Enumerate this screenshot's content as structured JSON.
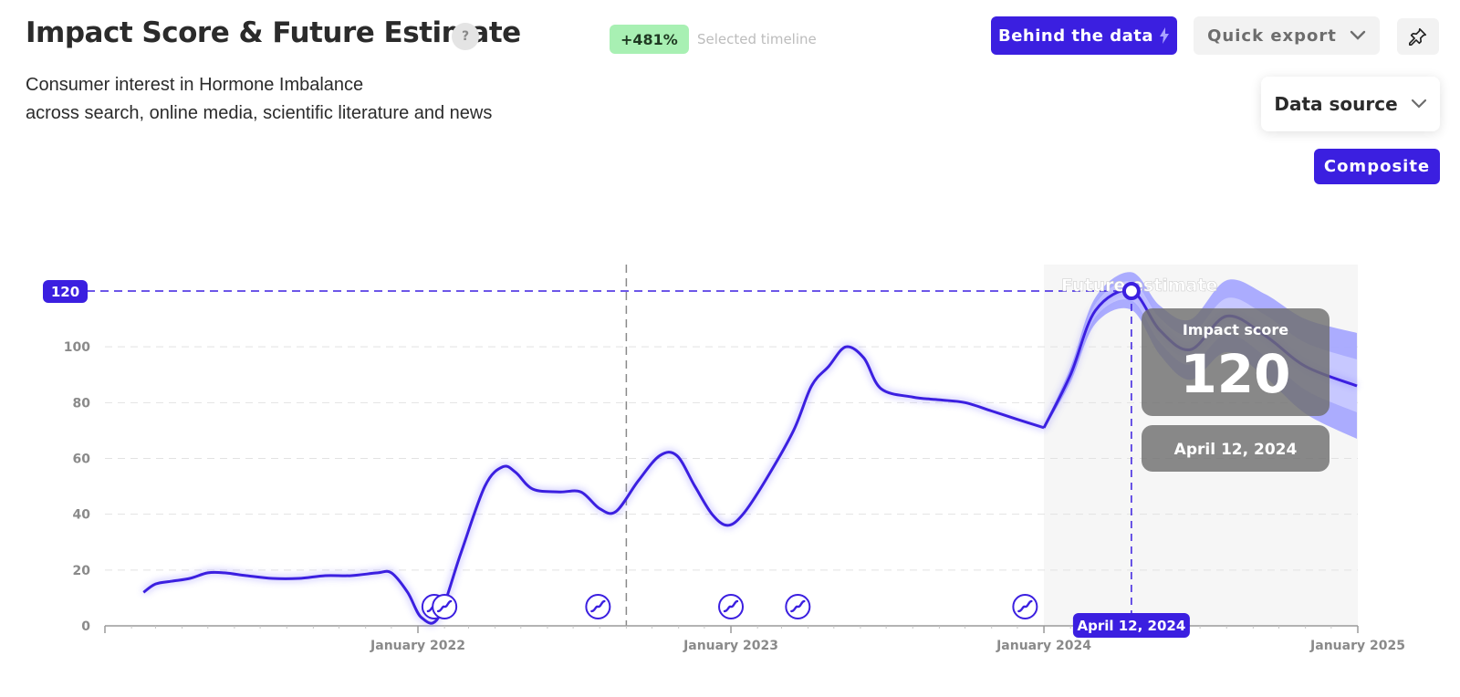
{
  "header": {
    "title": "Impact Score & Future Estimate",
    "help_label": "?",
    "change_badge": "+481%",
    "change_caption": "Selected timeline",
    "subtitle_line1": "Consumer interest in Hormone Imbalance",
    "subtitle_line2": "across search, online media, scientific literature and news"
  },
  "toolbar": {
    "behind_label": "Behind the data",
    "export_label": "Quick export",
    "pin_icon": "pin-icon",
    "data_source_label": "Data source",
    "composite_label": "Composite"
  },
  "tooltip": {
    "label": "Impact score",
    "value": "120",
    "date": "April 12, 2024"
  },
  "colors": {
    "accent": "#3b1fe0",
    "badge_bg": "#a8f0b3",
    "band_outer": "#a3a4ff",
    "band_inner": "#c8c9ff"
  },
  "chart_data": {
    "type": "line",
    "title": "Impact Score & Future Estimate",
    "xlabel": "",
    "ylabel": "",
    "ylim": [
      0,
      120
    ],
    "y_ticks": [
      0,
      20,
      40,
      60,
      80,
      100
    ],
    "x_ticks": [
      "2021-01-01",
      "2022-01-01",
      "2023-01-01",
      "2024-01-01",
      "2025-01-01"
    ],
    "x_tick_labels": [
      "",
      "January 2022",
      "January 2023",
      "January 2024",
      "January 2025"
    ],
    "grid": true,
    "reference_value_label": "120",
    "vertical_marker_date": "2022-09-01",
    "forecast_region_label": "Future estimate",
    "forecast_start": "2024-01-01",
    "selected_date": "2024-04-12",
    "selected_date_label": "April 12, 2024",
    "selected_value": 120,
    "series": [
      {
        "name": "Impact score",
        "points": [
          [
            "2021-02-15",
            12
          ],
          [
            "2021-03-01",
            15
          ],
          [
            "2021-03-20",
            16
          ],
          [
            "2021-04-10",
            17
          ],
          [
            "2021-05-01",
            19
          ],
          [
            "2021-05-20",
            19
          ],
          [
            "2021-06-15",
            18
          ],
          [
            "2021-07-15",
            17
          ],
          [
            "2021-08-15",
            17
          ],
          [
            "2021-09-15",
            18
          ],
          [
            "2021-10-15",
            18
          ],
          [
            "2021-11-15",
            19
          ],
          [
            "2021-12-01",
            19
          ],
          [
            "2021-12-20",
            12
          ],
          [
            "2022-01-05",
            3
          ],
          [
            "2022-01-25",
            3
          ],
          [
            "2022-02-20",
            26
          ],
          [
            "2022-03-20",
            50
          ],
          [
            "2022-04-10",
            57
          ],
          [
            "2022-04-25",
            55
          ],
          [
            "2022-05-15",
            49
          ],
          [
            "2022-06-15",
            48
          ],
          [
            "2022-07-10",
            48
          ],
          [
            "2022-08-01",
            42
          ],
          [
            "2022-08-20",
            41
          ],
          [
            "2022-09-15",
            52
          ],
          [
            "2022-10-10",
            61
          ],
          [
            "2022-10-30",
            61
          ],
          [
            "2022-11-20",
            50
          ],
          [
            "2022-12-10",
            40
          ],
          [
            "2022-12-28",
            36
          ],
          [
            "2023-01-15",
            40
          ],
          [
            "2023-02-10",
            52
          ],
          [
            "2023-03-15",
            70
          ],
          [
            "2023-04-05",
            86
          ],
          [
            "2023-04-25",
            93
          ],
          [
            "2023-05-15",
            100
          ],
          [
            "2023-06-05",
            96
          ],
          [
            "2023-06-25",
            85
          ],
          [
            "2023-08-01",
            82
          ],
          [
            "2023-09-01",
            81
          ],
          [
            "2023-10-01",
            80
          ],
          [
            "2023-11-01",
            77
          ],
          [
            "2023-12-01",
            74
          ],
          [
            "2024-01-01",
            71
          ]
        ]
      },
      {
        "name": "Future estimate",
        "points": [
          [
            "2024-01-01",
            71
          ],
          [
            "2024-02-01",
            90
          ],
          [
            "2024-03-01",
            113
          ],
          [
            "2024-04-12",
            120
          ],
          [
            "2024-05-15",
            106
          ],
          [
            "2024-06-20",
            99
          ],
          [
            "2024-08-01",
            111
          ],
          [
            "2024-09-15",
            104
          ],
          [
            "2024-11-01",
            93
          ],
          [
            "2024-12-31",
            86
          ]
        ]
      }
    ],
    "event_markers": [
      "2022-01-20",
      "2022-02-01",
      "2022-07-30",
      "2023-01-01",
      "2023-03-20",
      "2023-12-10"
    ]
  }
}
